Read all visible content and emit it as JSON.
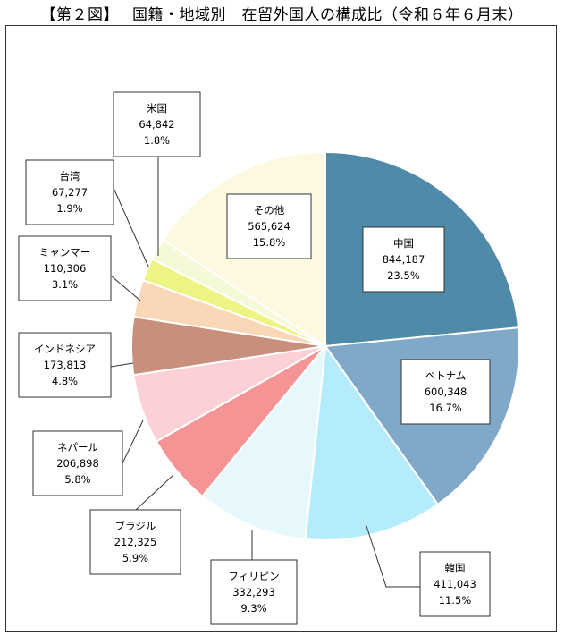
{
  "title": "【第２図】　 国籍・地域別　在留外国人の構成比（令和６年６月末）",
  "chart_data": {
    "type": "pie",
    "start": "12 o'clock",
    "direction": "clockwise",
    "slices": [
      {
        "name": "中国",
        "count": "844,187",
        "percent": "23.5%",
        "value": 23.5,
        "color": "#4f8aa8"
      },
      {
        "name": "ベトナム",
        "count": "600,348",
        "percent": "16.7%",
        "value": 16.7,
        "color": "#7fa8c9"
      },
      {
        "name": "韓国",
        "count": "411,043",
        "percent": "11.5%",
        "value": 11.5,
        "color": "#b5ecfb"
      },
      {
        "name": "フィリピン",
        "count": "332,293",
        "percent": "9.3%",
        "value": 9.3,
        "color": "#e6f8fc"
      },
      {
        "name": "ブラジル",
        "count": "212,325",
        "percent": "5.9%",
        "value": 5.9,
        "color": "#f49494"
      },
      {
        "name": "ネパール",
        "count": "206,898",
        "percent": "5.8%",
        "value": 5.8,
        "color": "#fbd1d6"
      },
      {
        "name": "インドネシア",
        "count": "173,813",
        "percent": "4.8%",
        "value": 4.8,
        "color": "#c8907c"
      },
      {
        "name": "ミャンマー",
        "count": "110,306",
        "percent": "3.1%",
        "value": 3.1,
        "color": "#f9d7b7"
      },
      {
        "name": "台湾",
        "count": "67,277",
        "percent": "1.9%",
        "value": 1.9,
        "color": "#eef484"
      },
      {
        "name": "米国",
        "count": "64,842",
        "percent": "1.8%",
        "value": 1.8,
        "color": "#f6f9d8"
      },
      {
        "name": "その他",
        "count": "565,624",
        "percent": "15.8%",
        "value": 15.8,
        "color": "#fdf9e1"
      }
    ]
  }
}
